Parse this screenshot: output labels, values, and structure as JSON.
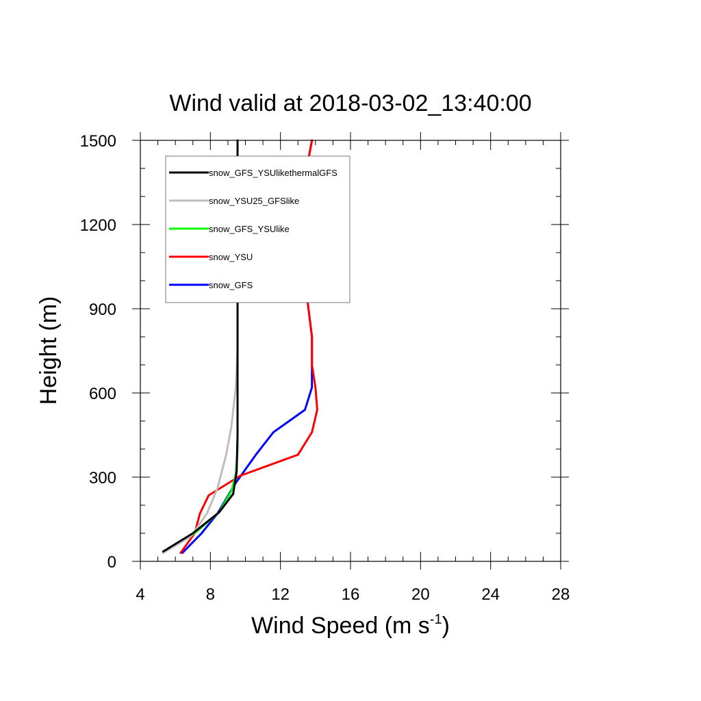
{
  "chart_data": {
    "type": "line",
    "title": "Wind valid at 2018-03-02_13:40:00",
    "xlabel": "Wind Speed (m s",
    "xlabel_sup": "-1",
    "xlabel_close": ")",
    "ylabel": "Height (m)",
    "xlim": [
      4,
      28
    ],
    "ylim": [
      0,
      1500
    ],
    "xticks": [
      "4",
      "8",
      "12",
      "16",
      "20",
      "24",
      "28"
    ],
    "yticks": [
      "0",
      "300",
      "600",
      "900",
      "1200",
      "1500"
    ],
    "legend_position": "top-left",
    "series": [
      {
        "name": "snow_GFS_YSUlikethermalGFS",
        "color": "#000000",
        "points": [
          [
            5.3,
            35
          ],
          [
            7.0,
            100
          ],
          [
            8.5,
            175
          ],
          [
            9.3,
            240
          ],
          [
            9.5,
            320
          ],
          [
            9.55,
            450
          ],
          [
            9.55,
            700
          ],
          [
            9.55,
            1000
          ],
          [
            9.55,
            1500
          ]
        ]
      },
      {
        "name": "snow_YSU25_GFSlike",
        "color": "#bebebe",
        "points": [
          [
            5.3,
            30
          ],
          [
            6.9,
            90
          ],
          [
            7.8,
            170
          ],
          [
            8.4,
            260
          ],
          [
            8.9,
            380
          ],
          [
            9.2,
            480
          ],
          [
            9.45,
            620
          ],
          [
            9.55,
            750
          ]
        ]
      },
      {
        "name": "snow_GFS_YSUlike",
        "color": "#00ff00",
        "points": [
          [
            5.3,
            30
          ],
          [
            7.1,
            100
          ],
          [
            8.5,
            175
          ],
          [
            9.2,
            250
          ],
          [
            9.45,
            310
          ],
          [
            9.55,
            400
          ],
          [
            9.55,
            1500
          ]
        ]
      },
      {
        "name": "snow_YSU",
        "color": "#ff0000",
        "points": [
          [
            6.3,
            30
          ],
          [
            7.1,
            100
          ],
          [
            7.4,
            170
          ],
          [
            7.9,
            235
          ],
          [
            9.7,
            305
          ],
          [
            13.0,
            380
          ],
          [
            13.8,
            460
          ],
          [
            14.1,
            540
          ],
          [
            14.0,
            620
          ],
          [
            13.8,
            700
          ],
          [
            13.8,
            800
          ],
          [
            13.6,
            900
          ],
          [
            13.3,
            1050
          ],
          [
            13.0,
            1180
          ],
          [
            13.2,
            1300
          ],
          [
            13.8,
            1500
          ]
        ]
      },
      {
        "name": "snow_GFS",
        "color": "#0000ff",
        "points": [
          [
            6.4,
            30
          ],
          [
            7.5,
            100
          ],
          [
            8.4,
            170
          ],
          [
            9.4,
            275
          ],
          [
            10.6,
            380
          ],
          [
            11.6,
            460
          ],
          [
            13.4,
            540
          ],
          [
            13.8,
            620
          ],
          [
            13.8,
            800
          ],
          [
            13.6,
            900
          ],
          [
            13.3,
            1050
          ],
          [
            13.0,
            1180
          ],
          [
            13.2,
            1300
          ],
          [
            13.8,
            1500
          ]
        ]
      }
    ]
  }
}
